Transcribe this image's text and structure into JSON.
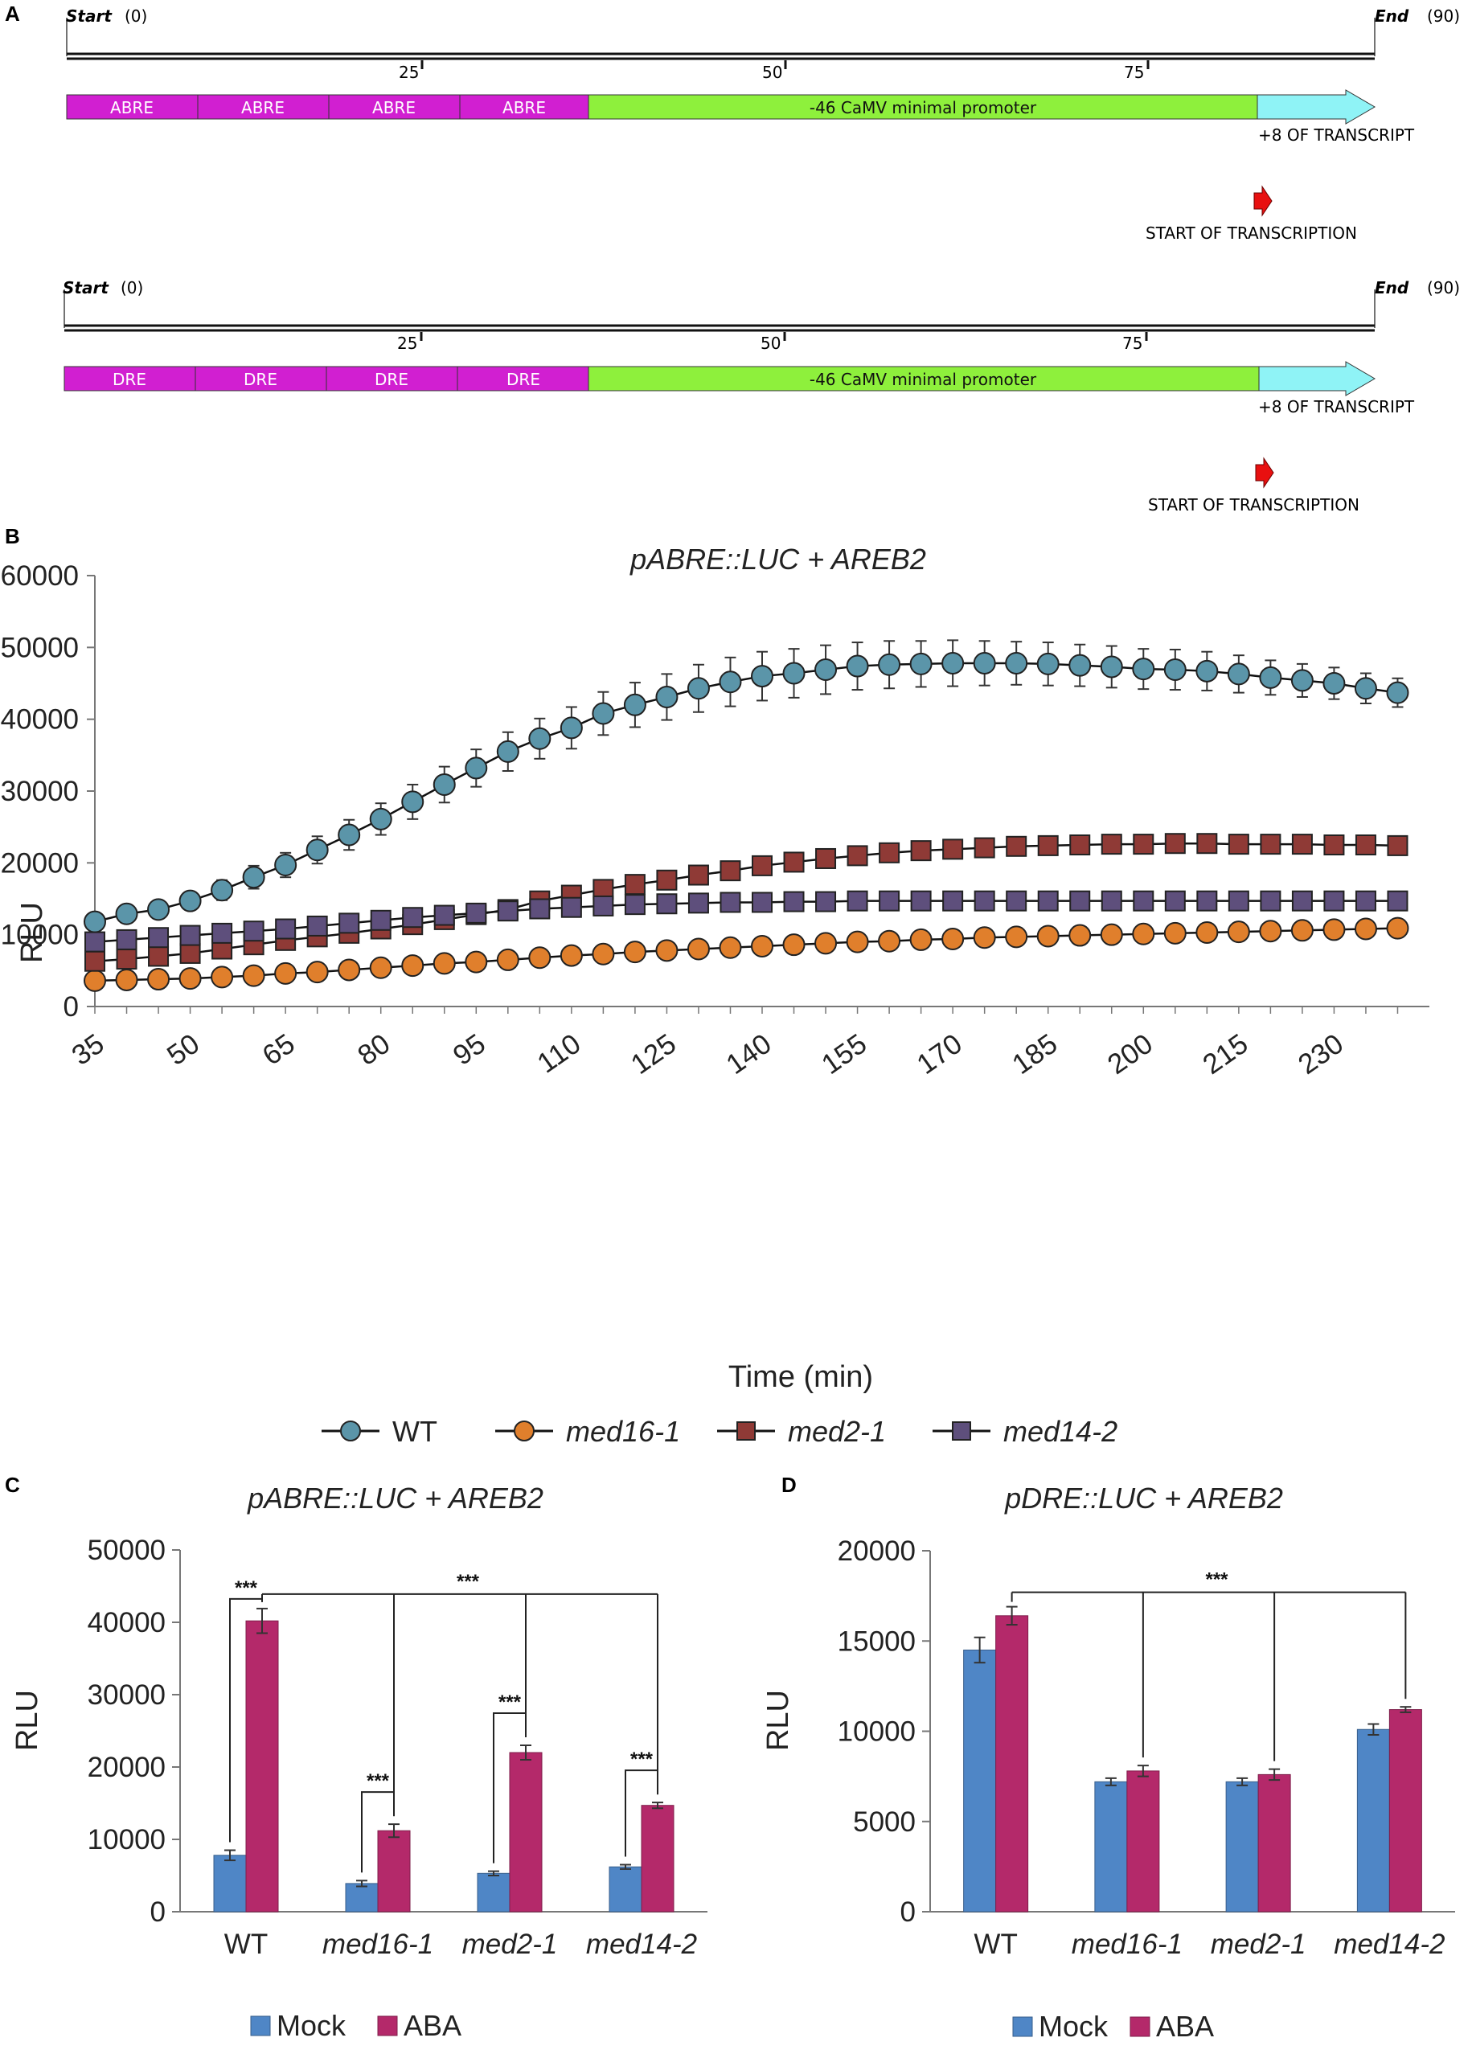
{
  "panel_a": {
    "letter": "A",
    "maps": [
      {
        "start_label": "Start",
        "start_num": "(0)",
        "end_label": "End",
        "end_num": "(90)",
        "ticks": [
          "25",
          "50",
          "75"
        ],
        "elements": [
          "ABRE",
          "ABRE",
          "ABRE",
          "ABRE"
        ],
        "promoter": "-46 CaMV minimal promoter",
        "transcript": "+8 OF TRANSCRIPT",
        "start_tx": "START OF TRANSCRIPTION"
      },
      {
        "start_label": "Start",
        "start_num": "(0)",
        "end_label": "End",
        "end_num": "(90)",
        "ticks": [
          "25",
          "50",
          "75"
        ],
        "elements": [
          "DRE",
          "DRE",
          "DRE",
          "DRE"
        ],
        "promoter": "-46 CaMV minimal promoter",
        "transcript": "+8 OF TRANSCRIPT",
        "start_tx": "START OF TRANSCRIPTION"
      }
    ],
    "colors": {
      "element": "#d11fd1",
      "promoter": "#8ef03c",
      "transcript": "#8ff3f6",
      "arrow": "#e81010"
    }
  },
  "chart_data": [
    {
      "panel": "B",
      "type": "line",
      "title": "pABRE::LUC + AREB2",
      "xlabel": "Time (min)",
      "ylabel": "RLU",
      "ylim": [
        0,
        60000
      ],
      "yticks": [
        "0",
        "10000",
        "20000",
        "30000",
        "40000",
        "50000",
        "60000"
      ],
      "xlim": [
        35,
        245
      ],
      "xticks": [
        "35",
        "50",
        "65",
        "80",
        "95",
        "110",
        "125",
        "140",
        "155",
        "170",
        "185",
        "200",
        "215",
        "230"
      ],
      "x": [
        35,
        40,
        45,
        50,
        55,
        60,
        65,
        70,
        75,
        80,
        85,
        90,
        95,
        100,
        105,
        110,
        115,
        120,
        125,
        130,
        135,
        140,
        145,
        150,
        155,
        160,
        165,
        170,
        175,
        180,
        185,
        190,
        195,
        200,
        205,
        210,
        215,
        220,
        225,
        230,
        235,
        240
      ],
      "legend_position": "bottom",
      "series": [
        {
          "name": "WT",
          "marker": "circle",
          "color": "#5b95a9",
          "smooth": true,
          "values": [
            11800,
            12900,
            13500,
            14700,
            16200,
            18000,
            19700,
            21800,
            23900,
            26100,
            28500,
            30900,
            33200,
            35500,
            37300,
            38800,
            40800,
            42000,
            43100,
            44300,
            45200,
            46000,
            46400,
            46900,
            47400,
            47600,
            47700,
            47800,
            47800,
            47800,
            47700,
            47500,
            47300,
            47000,
            46900,
            46700,
            46300,
            45800,
            45400,
            45000,
            44300,
            43700
          ],
          "errors": [
            1000,
            1000,
            1000,
            1200,
            1400,
            1600,
            1700,
            1900,
            2100,
            2200,
            2400,
            2500,
            2600,
            2700,
            2800,
            2900,
            3000,
            3100,
            3200,
            3300,
            3400,
            3400,
            3400,
            3400,
            3300,
            3300,
            3200,
            3200,
            3100,
            3000,
            3000,
            2900,
            2900,
            2800,
            2800,
            2700,
            2600,
            2400,
            2300,
            2200,
            2100,
            2000
          ]
        },
        {
          "name": "med16-1",
          "marker": "circle",
          "color": "#e07f2c",
          "smooth": false,
          "values": [
            3600,
            3700,
            3800,
            3900,
            4100,
            4300,
            4600,
            4800,
            5100,
            5400,
            5700,
            6000,
            6200,
            6500,
            6800,
            7100,
            7300,
            7600,
            7800,
            8000,
            8200,
            8400,
            8600,
            8800,
            9000,
            9100,
            9300,
            9400,
            9600,
            9700,
            9800,
            9900,
            10000,
            10100,
            10200,
            10300,
            10400,
            10500,
            10600,
            10700,
            10800,
            10900
          ],
          "errors": [
            400,
            400,
            400,
            400,
            400,
            500,
            500,
            500,
            500,
            500,
            600,
            600,
            600,
            600,
            600,
            600,
            600,
            600,
            600,
            600,
            600,
            600,
            600,
            600,
            600,
            600,
            600,
            600,
            600,
            600,
            600,
            600,
            600,
            600,
            600,
            600,
            600,
            600,
            600,
            600,
            600,
            600
          ]
        },
        {
          "name": "med2-1",
          "marker": "square",
          "color": "#8f3a36",
          "smooth": false,
          "values": [
            6300,
            6600,
            7000,
            7400,
            8000,
            8600,
            9200,
            9700,
            10200,
            10800,
            11400,
            12100,
            12800,
            13500,
            14700,
            15500,
            16300,
            17000,
            17600,
            18300,
            18900,
            19600,
            20100,
            20600,
            21000,
            21400,
            21700,
            21900,
            22100,
            22300,
            22400,
            22500,
            22600,
            22600,
            22700,
            22700,
            22600,
            22600,
            22600,
            22500,
            22500,
            22400
          ],
          "errors": [
            700,
            700,
            700,
            700,
            700,
            700,
            700,
            700,
            700,
            700,
            700,
            700,
            700,
            700,
            700,
            700,
            700,
            700,
            700,
            700,
            700,
            700,
            700,
            700,
            700,
            700,
            700,
            700,
            700,
            700,
            700,
            700,
            700,
            700,
            700,
            700,
            700,
            700,
            700,
            700,
            700,
            700
          ]
        },
        {
          "name": "med14-2",
          "marker": "square",
          "color": "#5e4f7c",
          "smooth": false,
          "values": [
            9000,
            9300,
            9600,
            9900,
            10200,
            10500,
            10800,
            11200,
            11600,
            12000,
            12400,
            12700,
            13000,
            13300,
            13600,
            13800,
            14000,
            14200,
            14300,
            14400,
            14500,
            14500,
            14600,
            14600,
            14700,
            14700,
            14700,
            14700,
            14700,
            14700,
            14700,
            14700,
            14700,
            14700,
            14700,
            14700,
            14700,
            14700,
            14700,
            14700,
            14700,
            14700
          ],
          "errors": [
            800,
            800,
            800,
            800,
            800,
            800,
            800,
            800,
            800,
            800,
            800,
            900,
            900,
            900,
            900,
            900,
            900,
            900,
            900,
            900,
            900,
            900,
            900,
            900,
            900,
            900,
            900,
            900,
            900,
            900,
            900,
            900,
            900,
            900,
            900,
            900,
            900,
            900,
            900,
            900,
            900,
            900
          ]
        }
      ]
    },
    {
      "panel": "C",
      "type": "bar",
      "title": "pABRE::LUC + AREB2",
      "ylabel": "RLU",
      "ylim": [
        0,
        50000
      ],
      "yticks": [
        "0",
        "10000",
        "20000",
        "30000",
        "40000",
        "50000"
      ],
      "categories": [
        "WT",
        "med16-1",
        "med2-1",
        "med14-2"
      ],
      "series": [
        {
          "name": "Mock",
          "color": "#4f86c6",
          "values": [
            7800,
            3900,
            5300,
            6200
          ],
          "errors": [
            700,
            400,
            300,
            300
          ]
        },
        {
          "name": "ABA",
          "color": "#b4296a",
          "values": [
            40200,
            11200,
            22000,
            14700
          ],
          "errors": [
            1700,
            900,
            1000,
            400
          ]
        }
      ],
      "significance": [
        "***",
        "***",
        "***",
        "***",
        "***"
      ],
      "legend_position": "bottom"
    },
    {
      "panel": "D",
      "type": "bar",
      "title": "pDRE::LUC + AREB2",
      "ylabel": "RLU",
      "ylim": [
        0,
        20000
      ],
      "yticks": [
        "0",
        "5000",
        "10000",
        "15000",
        "20000"
      ],
      "categories": [
        "WT",
        "med16-1",
        "med2-1",
        "med14-2"
      ],
      "series": [
        {
          "name": "Mock",
          "color": "#4f86c6",
          "values": [
            14500,
            7200,
            7200,
            10100
          ],
          "errors": [
            700,
            200,
            200,
            300
          ]
        },
        {
          "name": "ABA",
          "color": "#b4296a",
          "values": [
            16400,
            7800,
            7600,
            11200
          ],
          "errors": [
            500,
            300,
            300,
            150
          ]
        }
      ],
      "significance": [
        "***"
      ],
      "legend_position": "bottom"
    }
  ]
}
